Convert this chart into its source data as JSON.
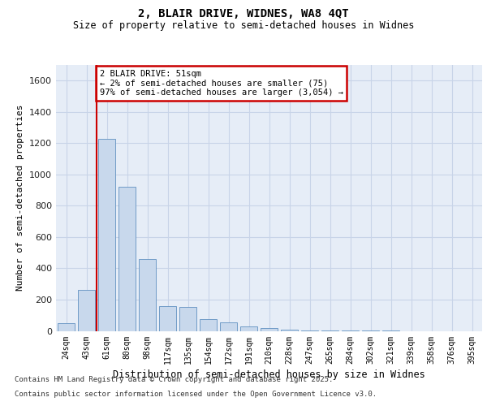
{
  "title_line1": "2, BLAIR DRIVE, WIDNES, WA8 4QT",
  "title_line2": "Size of property relative to semi-detached houses in Widnes",
  "xlabel": "Distribution of semi-detached houses by size in Widnes",
  "ylabel": "Number of semi-detached properties",
  "bar_color": "#c8d8ec",
  "bar_edge_color": "#6090c0",
  "annotation_text": "2 BLAIR DRIVE: 51sqm\n← 2% of semi-detached houses are smaller (75)\n97% of semi-detached houses are larger (3,054) →",
  "annotation_bg": "#ffffff",
  "annotation_edge": "#cc0000",
  "vline_color": "#cc0000",
  "vline_x": 1.5,
  "categories": [
    "24sqm",
    "43sqm",
    "61sqm",
    "80sqm",
    "98sqm",
    "117sqm",
    "135sqm",
    "154sqm",
    "172sqm",
    "191sqm",
    "210sqm",
    "228sqm",
    "247sqm",
    "265sqm",
    "284sqm",
    "302sqm",
    "321sqm",
    "339sqm",
    "358sqm",
    "376sqm",
    "395sqm"
  ],
  "values": [
    50,
    260,
    1230,
    920,
    460,
    160,
    155,
    75,
    55,
    30,
    20,
    10,
    5,
    3,
    2,
    1,
    1,
    0,
    0,
    0,
    0
  ],
  "ylim": [
    0,
    1700
  ],
  "yticks": [
    0,
    200,
    400,
    600,
    800,
    1000,
    1200,
    1400,
    1600
  ],
  "grid_color": "#c8d4e8",
  "plot_bg": "#e6edf7",
  "footnote_line1": "Contains HM Land Registry data © Crown copyright and database right 2025.",
  "footnote_line2": "Contains public sector information licensed under the Open Government Licence v3.0."
}
